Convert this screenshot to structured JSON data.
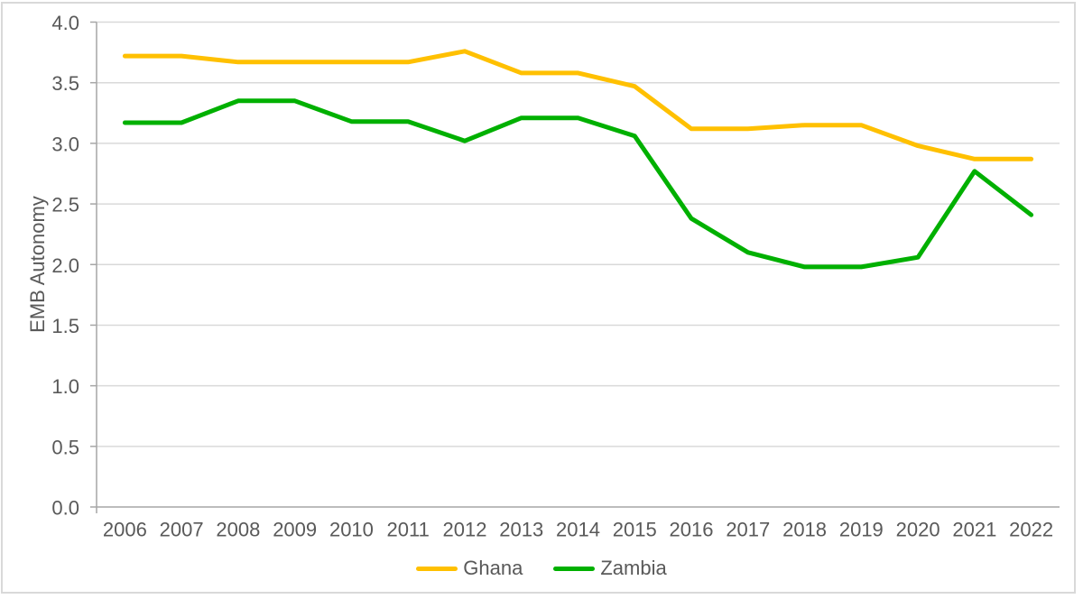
{
  "chart_data": {
    "type": "line",
    "title": "",
    "xlabel": "",
    "ylabel": "EMB Autonomy",
    "ylim": [
      0,
      4
    ],
    "ytick_step": 0.5,
    "grid": true,
    "legend_position": "bottom-center",
    "categories": [
      "2006",
      "2007",
      "2008",
      "2009",
      "2010",
      "2011",
      "2012",
      "2013",
      "2014",
      "2015",
      "2016",
      "2017",
      "2018",
      "2019",
      "2020",
      "2021",
      "2022"
    ],
    "series": [
      {
        "name": "Ghana",
        "color": "#FFC000",
        "values": [
          3.72,
          3.72,
          3.67,
          3.67,
          3.67,
          3.67,
          3.76,
          3.58,
          3.58,
          3.47,
          3.12,
          3.12,
          3.15,
          3.15,
          2.98,
          2.87,
          2.87
        ]
      },
      {
        "name": "Zambia",
        "color": "#00B000",
        "values": [
          3.17,
          3.17,
          3.35,
          3.35,
          3.18,
          3.18,
          3.02,
          3.21,
          3.21,
          3.06,
          2.38,
          2.1,
          1.98,
          1.98,
          2.06,
          2.77,
          2.41
        ]
      }
    ]
  },
  "colors": {
    "gridline": "#D9D9D9",
    "axis": "#A6A6A6",
    "tick_label": "#595959",
    "axis_title": "#595959",
    "legend_label": "#595959",
    "frame_border": "#D9D9D9",
    "background": "#FFFFFF"
  }
}
